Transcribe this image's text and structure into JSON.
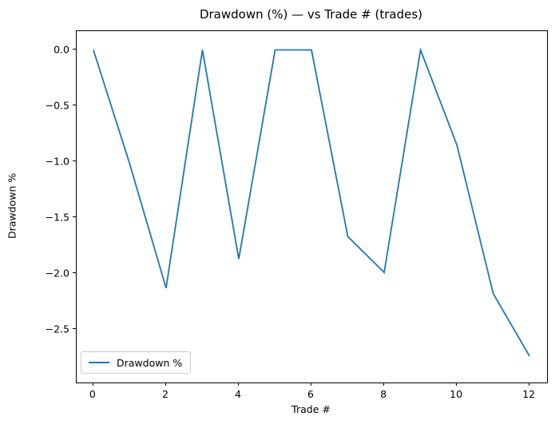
{
  "figure": {
    "title": "Drawdown (%) — vs Trade # (trades)",
    "xlabel": "Trade #",
    "ylabel": "Drawdown %",
    "legend_label": "Drawdown %",
    "background_color": "#ffffff",
    "spine_color": "#000000",
    "legend_border_color": "#cccccc"
  },
  "chart_data": {
    "type": "line",
    "title": "Drawdown (%) — vs Trade # (trades)",
    "xlabel": "Trade #",
    "ylabel": "Drawdown %",
    "x": [
      0,
      1,
      2,
      3,
      4,
      5,
      6,
      7,
      8,
      9,
      10,
      11,
      12
    ],
    "series": [
      {
        "name": "Drawdown %",
        "color": "#1f77b4",
        "values": [
          0.0,
          -1.02,
          -2.13,
          0.0,
          -1.87,
          0.0,
          0.0,
          -1.67,
          -1.99,
          0.0,
          -0.85,
          -2.18,
          -2.74
        ]
      }
    ],
    "xlim": [
      -0.46,
      12.48
    ],
    "ylim": [
      -2.975,
      0.168
    ],
    "xticks": [
      0,
      2,
      4,
      6,
      8,
      10,
      12
    ],
    "yticks": [
      0.0,
      -0.5,
      -1.0,
      -1.5,
      -2.0,
      -2.5
    ],
    "xtick_labels": [
      "0",
      "2",
      "4",
      "6",
      "8",
      "10",
      "12"
    ],
    "ytick_labels": [
      "0.0",
      "−0.5",
      "−1.0",
      "−1.5",
      "−2.0",
      "−2.5"
    ],
    "grid": false,
    "legend_position": "lower left",
    "line_width": 1.8
  }
}
